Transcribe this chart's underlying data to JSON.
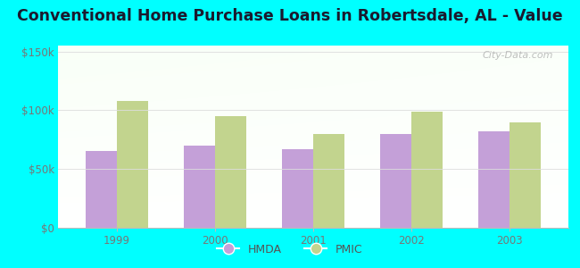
{
  "title": "Conventional Home Purchase Loans in Robertsdale, AL - Value",
  "years": [
    1999,
    2000,
    2001,
    2002,
    2003
  ],
  "hmda_values": [
    65000,
    70000,
    67000,
    80000,
    82000
  ],
  "pmic_values": [
    108000,
    95000,
    80000,
    99000,
    90000
  ],
  "hmda_color": "#c4a0d8",
  "pmic_color": "#c2d48e",
  "background_color": "#00ffff",
  "yticks": [
    0,
    50000,
    100000,
    150000
  ],
  "ytick_labels": [
    "$0",
    "$50k",
    "$100k",
    "$150k"
  ],
  "ylim": [
    0,
    155000
  ],
  "bar_width": 0.32,
  "title_fontsize": 12.5,
  "legend_labels": [
    "HMDA",
    "PMIC"
  ],
  "watermark": "City-Data.com",
  "tick_color": "#777777",
  "grid_color": "#dddddd"
}
